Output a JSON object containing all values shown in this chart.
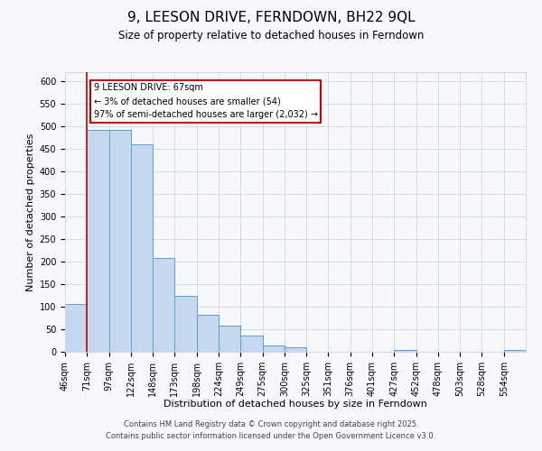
{
  "title": "9, LEESON DRIVE, FERNDOWN, BH22 9QL",
  "subtitle": "Size of property relative to detached houses in Ferndown",
  "xlabel": "Distribution of detached houses by size in Ferndown",
  "ylabel": "Number of detached properties",
  "bin_labels": [
    "46sqm",
    "71sqm",
    "97sqm",
    "122sqm",
    "148sqm",
    "173sqm",
    "198sqm",
    "224sqm",
    "249sqm",
    "275sqm",
    "300sqm",
    "325sqm",
    "351sqm",
    "376sqm",
    "401sqm",
    "427sqm",
    "452sqm",
    "478sqm",
    "503sqm",
    "528sqm",
    "554sqm"
  ],
  "bar_values": [
    107,
    493,
    493,
    460,
    208,
    125,
    83,
    59,
    37,
    14,
    11,
    0,
    0,
    0,
    0,
    5,
    0,
    0,
    0,
    0,
    5
  ],
  "bar_color": "#c5d8f0",
  "bar_edge_color": "#5a9fd4",
  "vline_x": 1,
  "vline_color": "#cc0000",
  "annotation_title": "9 LEESON DRIVE: 67sqm",
  "annotation_line2": "← 3% of detached houses are smaller (54)",
  "annotation_line3": "97% of semi-detached houses are larger (2,032) →",
  "annotation_box_edge": "#cc0000",
  "annotation_box_face": "#ffffff",
  "ylim": [
    0,
    620
  ],
  "yticks": [
    0,
    50,
    100,
    150,
    200,
    250,
    300,
    350,
    400,
    450,
    500,
    550,
    600
  ],
  "footer1": "Contains HM Land Registry data © Crown copyright and database right 2025.",
  "footer2": "Contains public sector information licensed under the Open Government Licence v3.0.",
  "bg_color": "#f7f8fc",
  "grid_color": "#d0d5e8",
  "title_fontsize": 11,
  "subtitle_fontsize": 8.5,
  "axis_label_fontsize": 8,
  "tick_fontsize": 7,
  "footer_fontsize": 6,
  "annotation_fontsize": 7
}
